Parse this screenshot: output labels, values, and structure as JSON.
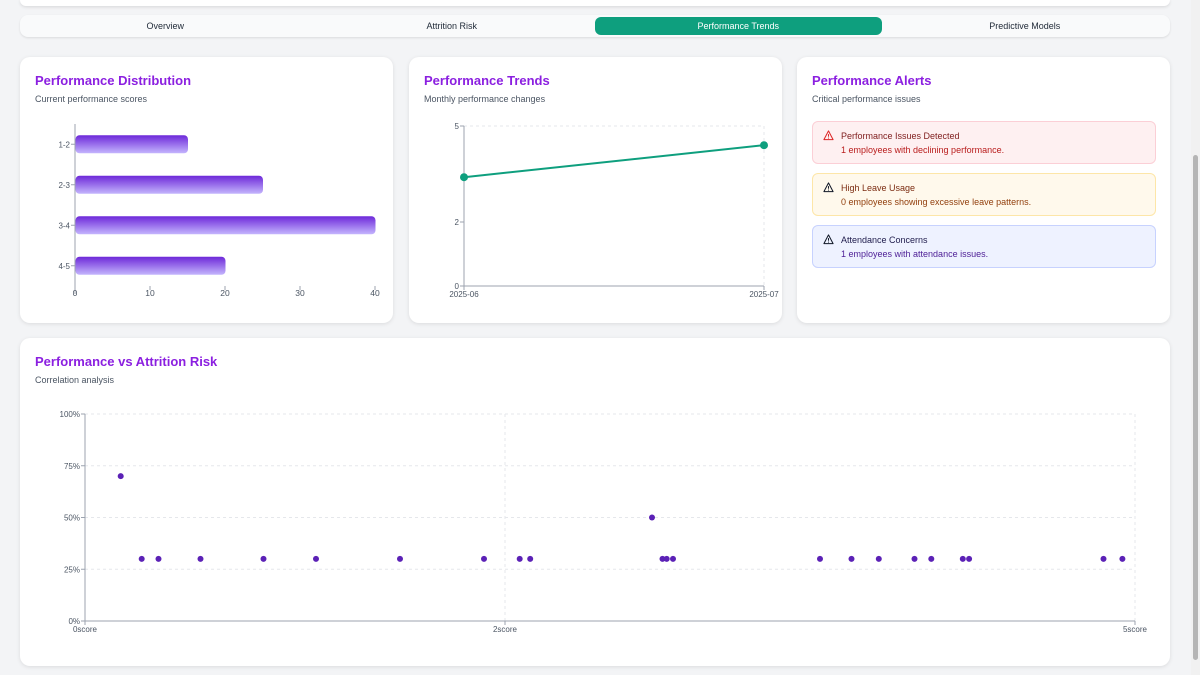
{
  "tabs": [
    {
      "label": "Overview"
    },
    {
      "label": "Attrition Risk"
    },
    {
      "label": "Performance Trends",
      "active": true
    },
    {
      "label": "Predictive Models"
    }
  ],
  "distribution": {
    "title": "Performance Distribution",
    "subtitle": "Current performance scores",
    "chart_data": {
      "type": "bar",
      "orientation": "horizontal",
      "categories": [
        "1-2",
        "2-3",
        "3-4",
        "4-5"
      ],
      "values": [
        15,
        25,
        40,
        20
      ],
      "xticks": [
        "0",
        "10",
        "20",
        "30",
        "40"
      ],
      "xlim": [
        0,
        40
      ],
      "color": "#7c3aed"
    }
  },
  "trends": {
    "title": "Performance Trends",
    "subtitle": "Monthly performance changes",
    "chart_data": {
      "type": "line",
      "x": [
        "2025-06",
        "2025-07"
      ],
      "values": [
        3.4,
        4.4
      ],
      "yticks": [
        "0",
        "2",
        "5"
      ],
      "ylim": [
        0,
        5
      ],
      "color": "#0e9f7e"
    }
  },
  "alerts": {
    "title": "Performance Alerts",
    "subtitle": "Critical performance issues",
    "items": [
      {
        "title": "Performance Issues Detected",
        "desc": "1 employees with declining performance.",
        "icon": "warning-icon",
        "tone": "red"
      },
      {
        "title": "High Leave Usage",
        "desc": "0 employees showing excessive leave patterns.",
        "icon": "warning-icon",
        "tone": "amber"
      },
      {
        "title": "Attendance Concerns",
        "desc": "1 employees with attendance issues.",
        "icon": "warning-icon",
        "tone": "blue"
      }
    ]
  },
  "scatter": {
    "title": "Performance vs Attrition Risk",
    "subtitle": "Correlation analysis",
    "chart_data": {
      "type": "scatter",
      "xticks": [
        "0score",
        "2score",
        "5score"
      ],
      "yticks": [
        "0%",
        "25%",
        "50%",
        "75%",
        "100%"
      ],
      "ylim": [
        0,
        100
      ],
      "color": "#5b21b6",
      "points": [
        [
          0.17,
          70
        ],
        [
          0.27,
          30
        ],
        [
          0.35,
          30
        ],
        [
          0.55,
          30
        ],
        [
          0.85,
          30
        ],
        [
          1.1,
          30
        ],
        [
          1.5,
          30
        ],
        [
          1.9,
          30
        ],
        [
          2.07,
          30
        ],
        [
          2.12,
          30
        ],
        [
          2.7,
          50
        ],
        [
          2.75,
          30
        ],
        [
          2.77,
          30
        ],
        [
          2.8,
          30
        ],
        [
          3.5,
          30
        ],
        [
          3.65,
          30
        ],
        [
          3.78,
          30
        ],
        [
          3.95,
          30
        ],
        [
          4.03,
          30
        ],
        [
          4.18,
          30
        ],
        [
          4.21,
          30
        ],
        [
          4.85,
          30
        ],
        [
          4.94,
          30
        ]
      ]
    }
  }
}
